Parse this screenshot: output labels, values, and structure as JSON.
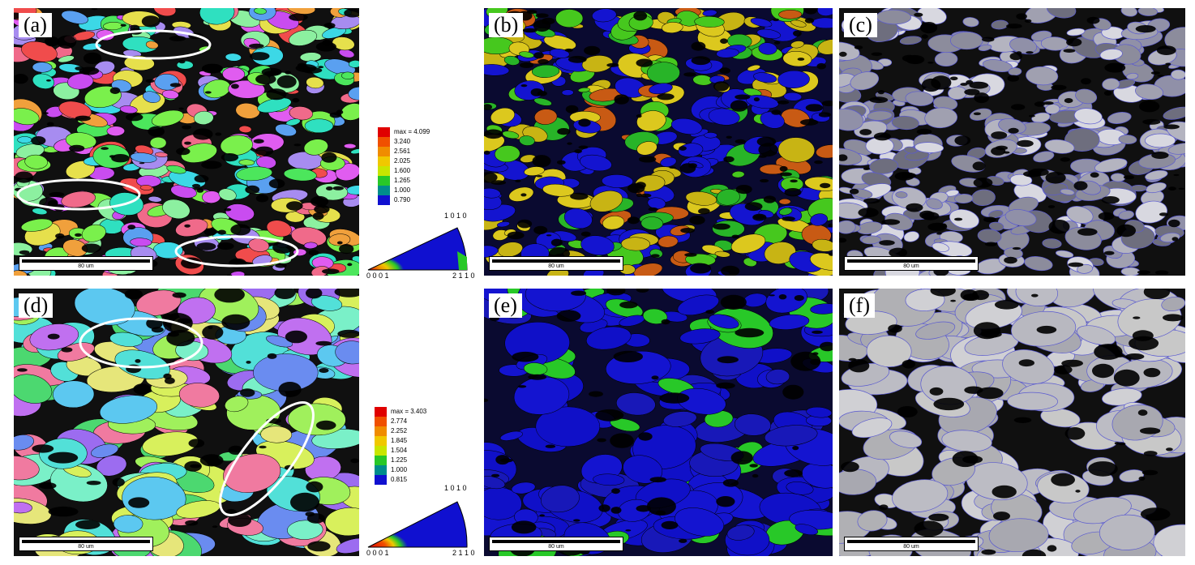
{
  "panels": {
    "a": {
      "label": "(a)",
      "scale": "80 um"
    },
    "b": {
      "label": "(b)",
      "scale": "80 um"
    },
    "c": {
      "label": "(c)",
      "scale": "80 um"
    },
    "d": {
      "label": "(d)",
      "scale": "80 um"
    },
    "e": {
      "label": "(e)",
      "scale": "80 um"
    },
    "f": {
      "label": "(f)",
      "scale": "80 um"
    }
  },
  "legend_top": {
    "values": [
      "max = 4.099",
      "3.240",
      "2.561",
      "2.025",
      "1.600",
      "1.265",
      "1.000",
      "0.790"
    ],
    "colors": [
      "#e00000",
      "#f05000",
      "#f08c00",
      "#f0c800",
      "#c8e600",
      "#28c828",
      "#008c8c",
      "#1010d0"
    ]
  },
  "legend_bottom": {
    "values": [
      "max = 3.403",
      "2.774",
      "2.252",
      "1.845",
      "1.504",
      "1.225",
      "1.000",
      "0.815"
    ],
    "colors": [
      "#e00000",
      "#f05000",
      "#f08c00",
      "#f0c800",
      "#c8e600",
      "#28c828",
      "#008c8c",
      "#1010d0"
    ]
  },
  "ipf_key": {
    "top_right": "1 0 1 0",
    "bottom_left": "0 0 0 1",
    "bottom_right": "2 1 1 0"
  }
}
